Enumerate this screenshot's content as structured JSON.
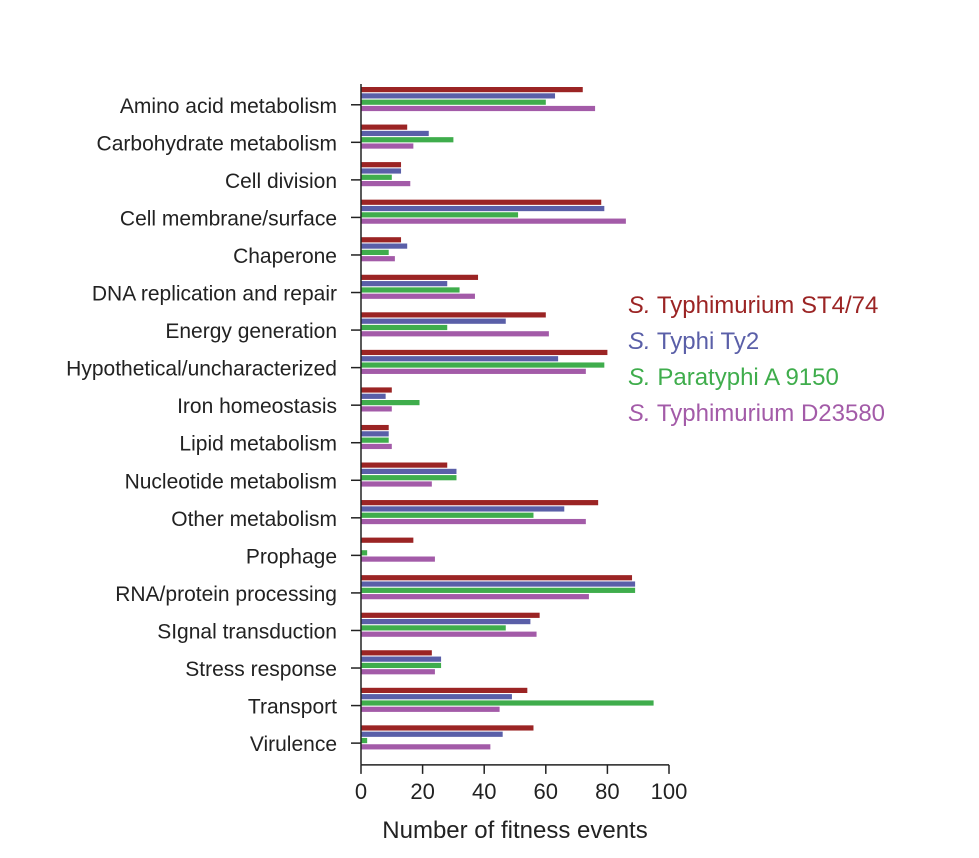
{
  "chart_data": {
    "type": "bar",
    "orientation": "horizontal",
    "title": "",
    "xlabel": "Number of fitness events",
    "ylabel": "",
    "xlim": [
      0,
      100
    ],
    "xticks": [
      0,
      20,
      40,
      60,
      80,
      100
    ],
    "grid": false,
    "legend_position": "right",
    "categories": [
      "Amino acid metabolism",
      "Carbohydrate metabolism",
      "Cell division",
      "Cell membrane/surface",
      "Chaperone",
      "DNA replication and repair",
      "Energy generation",
      "Hypothetical/uncharacterized",
      "Iron homeostasis",
      "Lipid metabolism",
      "Nucleotide metabolism",
      "Other metabolism",
      "Prophage",
      "RNA/protein processing",
      "SIgnal transduction",
      "Stress response",
      "Transport",
      "Virulence"
    ],
    "series": [
      {
        "name": "S. Typhimurium ST4/74",
        "genus": "S.",
        "label": "Typhimurium ST4/74",
        "color": "#9b2424",
        "values": [
          72,
          15,
          13,
          78,
          13,
          38,
          60,
          80,
          10,
          9,
          28,
          77,
          17,
          88,
          58,
          23,
          54,
          56
        ]
      },
      {
        "name": "S. Typhi Ty2",
        "genus": "S.",
        "label": "Typhi Ty2",
        "color": "#5a5fa8",
        "values": [
          63,
          22,
          13,
          79,
          15,
          28,
          47,
          64,
          8,
          9,
          31,
          66,
          0,
          89,
          55,
          26,
          49,
          46
        ]
      },
      {
        "name": "S. Paratyphi A 9150",
        "genus": "S.",
        "label": "Paratyphi A 9150",
        "color": "#3fad4c",
        "values": [
          60,
          30,
          10,
          51,
          9,
          32,
          28,
          79,
          19,
          9,
          31,
          56,
          2,
          89,
          47,
          26,
          95,
          2
        ]
      },
      {
        "name": "S. Typhimurium D23580",
        "genus": "S.",
        "label": "Typhimurium D23580",
        "color": "#a35ba8",
        "values": [
          76,
          17,
          16,
          86,
          11,
          37,
          61,
          73,
          10,
          10,
          23,
          73,
          24,
          74,
          57,
          24,
          45,
          42
        ]
      }
    ]
  }
}
